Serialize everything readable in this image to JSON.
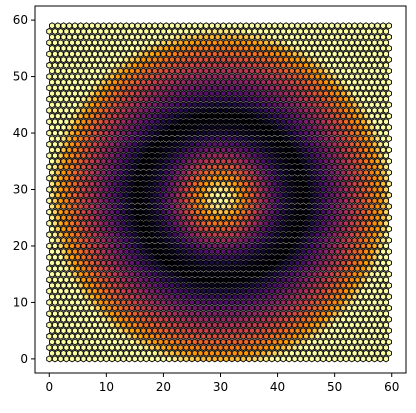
{
  "chart_data": {
    "type": "heatmap",
    "title": "",
    "xlabel": "",
    "ylabel": "",
    "grid": "hexagonal",
    "grid_size": [
      60,
      60
    ],
    "xlim": [
      -2.5,
      62.5
    ],
    "ylim": [
      62.5,
      -2.5
    ],
    "y_inverted": true,
    "xticks": [
      0,
      10,
      20,
      30,
      40,
      50,
      60
    ],
    "yticks": [
      0,
      10,
      20,
      30,
      40,
      50,
      60
    ],
    "xtick_labels": [
      "0",
      "10",
      "20",
      "30",
      "40",
      "50",
      "60"
    ],
    "ytick_labels": [
      "0",
      "10",
      "20",
      "30",
      "40",
      "50",
      "60"
    ],
    "center": [
      30,
      28.5
    ],
    "field": "ring_interference",
    "dark_ring_radius": 15,
    "colormap": "inferno",
    "cell_edge_color": "#000000",
    "legend": "none"
  }
}
